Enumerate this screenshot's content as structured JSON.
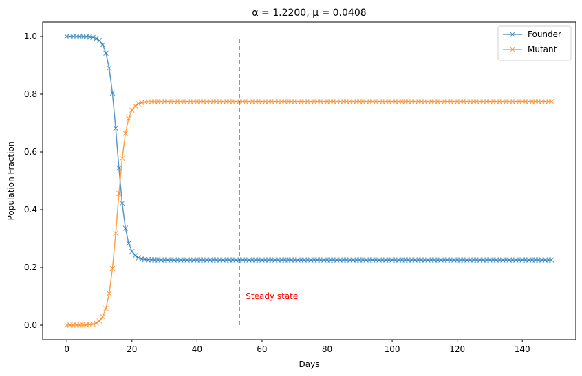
{
  "chart_data": {
    "type": "line",
    "title": "α = 1.2200, μ = 0.0408",
    "xlabel": "Days",
    "ylabel": "Population Fraction",
    "xlim": [
      -7.45,
      156.45
    ],
    "ylim": [
      -0.05,
      1.05
    ],
    "xticks": [
      0,
      20,
      40,
      60,
      80,
      100,
      120,
      140
    ],
    "yticks": [
      0.0,
      0.2,
      0.4,
      0.6,
      0.8,
      1.0
    ],
    "xtick_labels": [
      "0",
      "20",
      "40",
      "60",
      "80",
      "100",
      "120",
      "140"
    ],
    "ytick_labels": [
      "0.0",
      "0.2",
      "0.4",
      "0.6",
      "0.8",
      "1.0"
    ],
    "grid": false,
    "legend_position": "top-right",
    "x": {
      "start": 0,
      "end": 149,
      "step": 1
    },
    "series": [
      {
        "name": "Founder",
        "color": "#1f77b4",
        "marker": "x",
        "model": "logistic",
        "params": {
          "start": 1.0,
          "end": 0.226,
          "midpoint": 15.5,
          "rate": 0.72
        },
        "values_sampled": {
          "0": 1.0,
          "5": 1.0,
          "10": 0.99,
          "12": 0.94,
          "14": 0.78,
          "16": 0.51,
          "18": 0.33,
          "20": 0.25,
          "25": 0.23,
          "50": 0.226,
          "100": 0.226,
          "149": 0.226
        }
      },
      {
        "name": "Mutant",
        "color": "#ff7f0e",
        "marker": "x",
        "model": "logistic",
        "params": {
          "start": 0.0,
          "end": 0.774,
          "midpoint": 15.5,
          "rate": 0.72
        },
        "values_sampled": {
          "0": 0.0,
          "5": 0.0,
          "10": 0.01,
          "12": 0.06,
          "14": 0.22,
          "16": 0.49,
          "18": 0.67,
          "20": 0.75,
          "25": 0.77,
          "50": 0.774,
          "100": 0.774,
          "149": 0.774
        }
      }
    ],
    "annotations": [
      {
        "type": "vline",
        "x": 53,
        "y_from": 0.0,
        "y_to": 1.0,
        "color": "#ff0000",
        "style": "dashed"
      },
      {
        "type": "text",
        "text": "Steady state",
        "x": 55,
        "y": 0.1,
        "color": "#ff0000"
      }
    ]
  }
}
